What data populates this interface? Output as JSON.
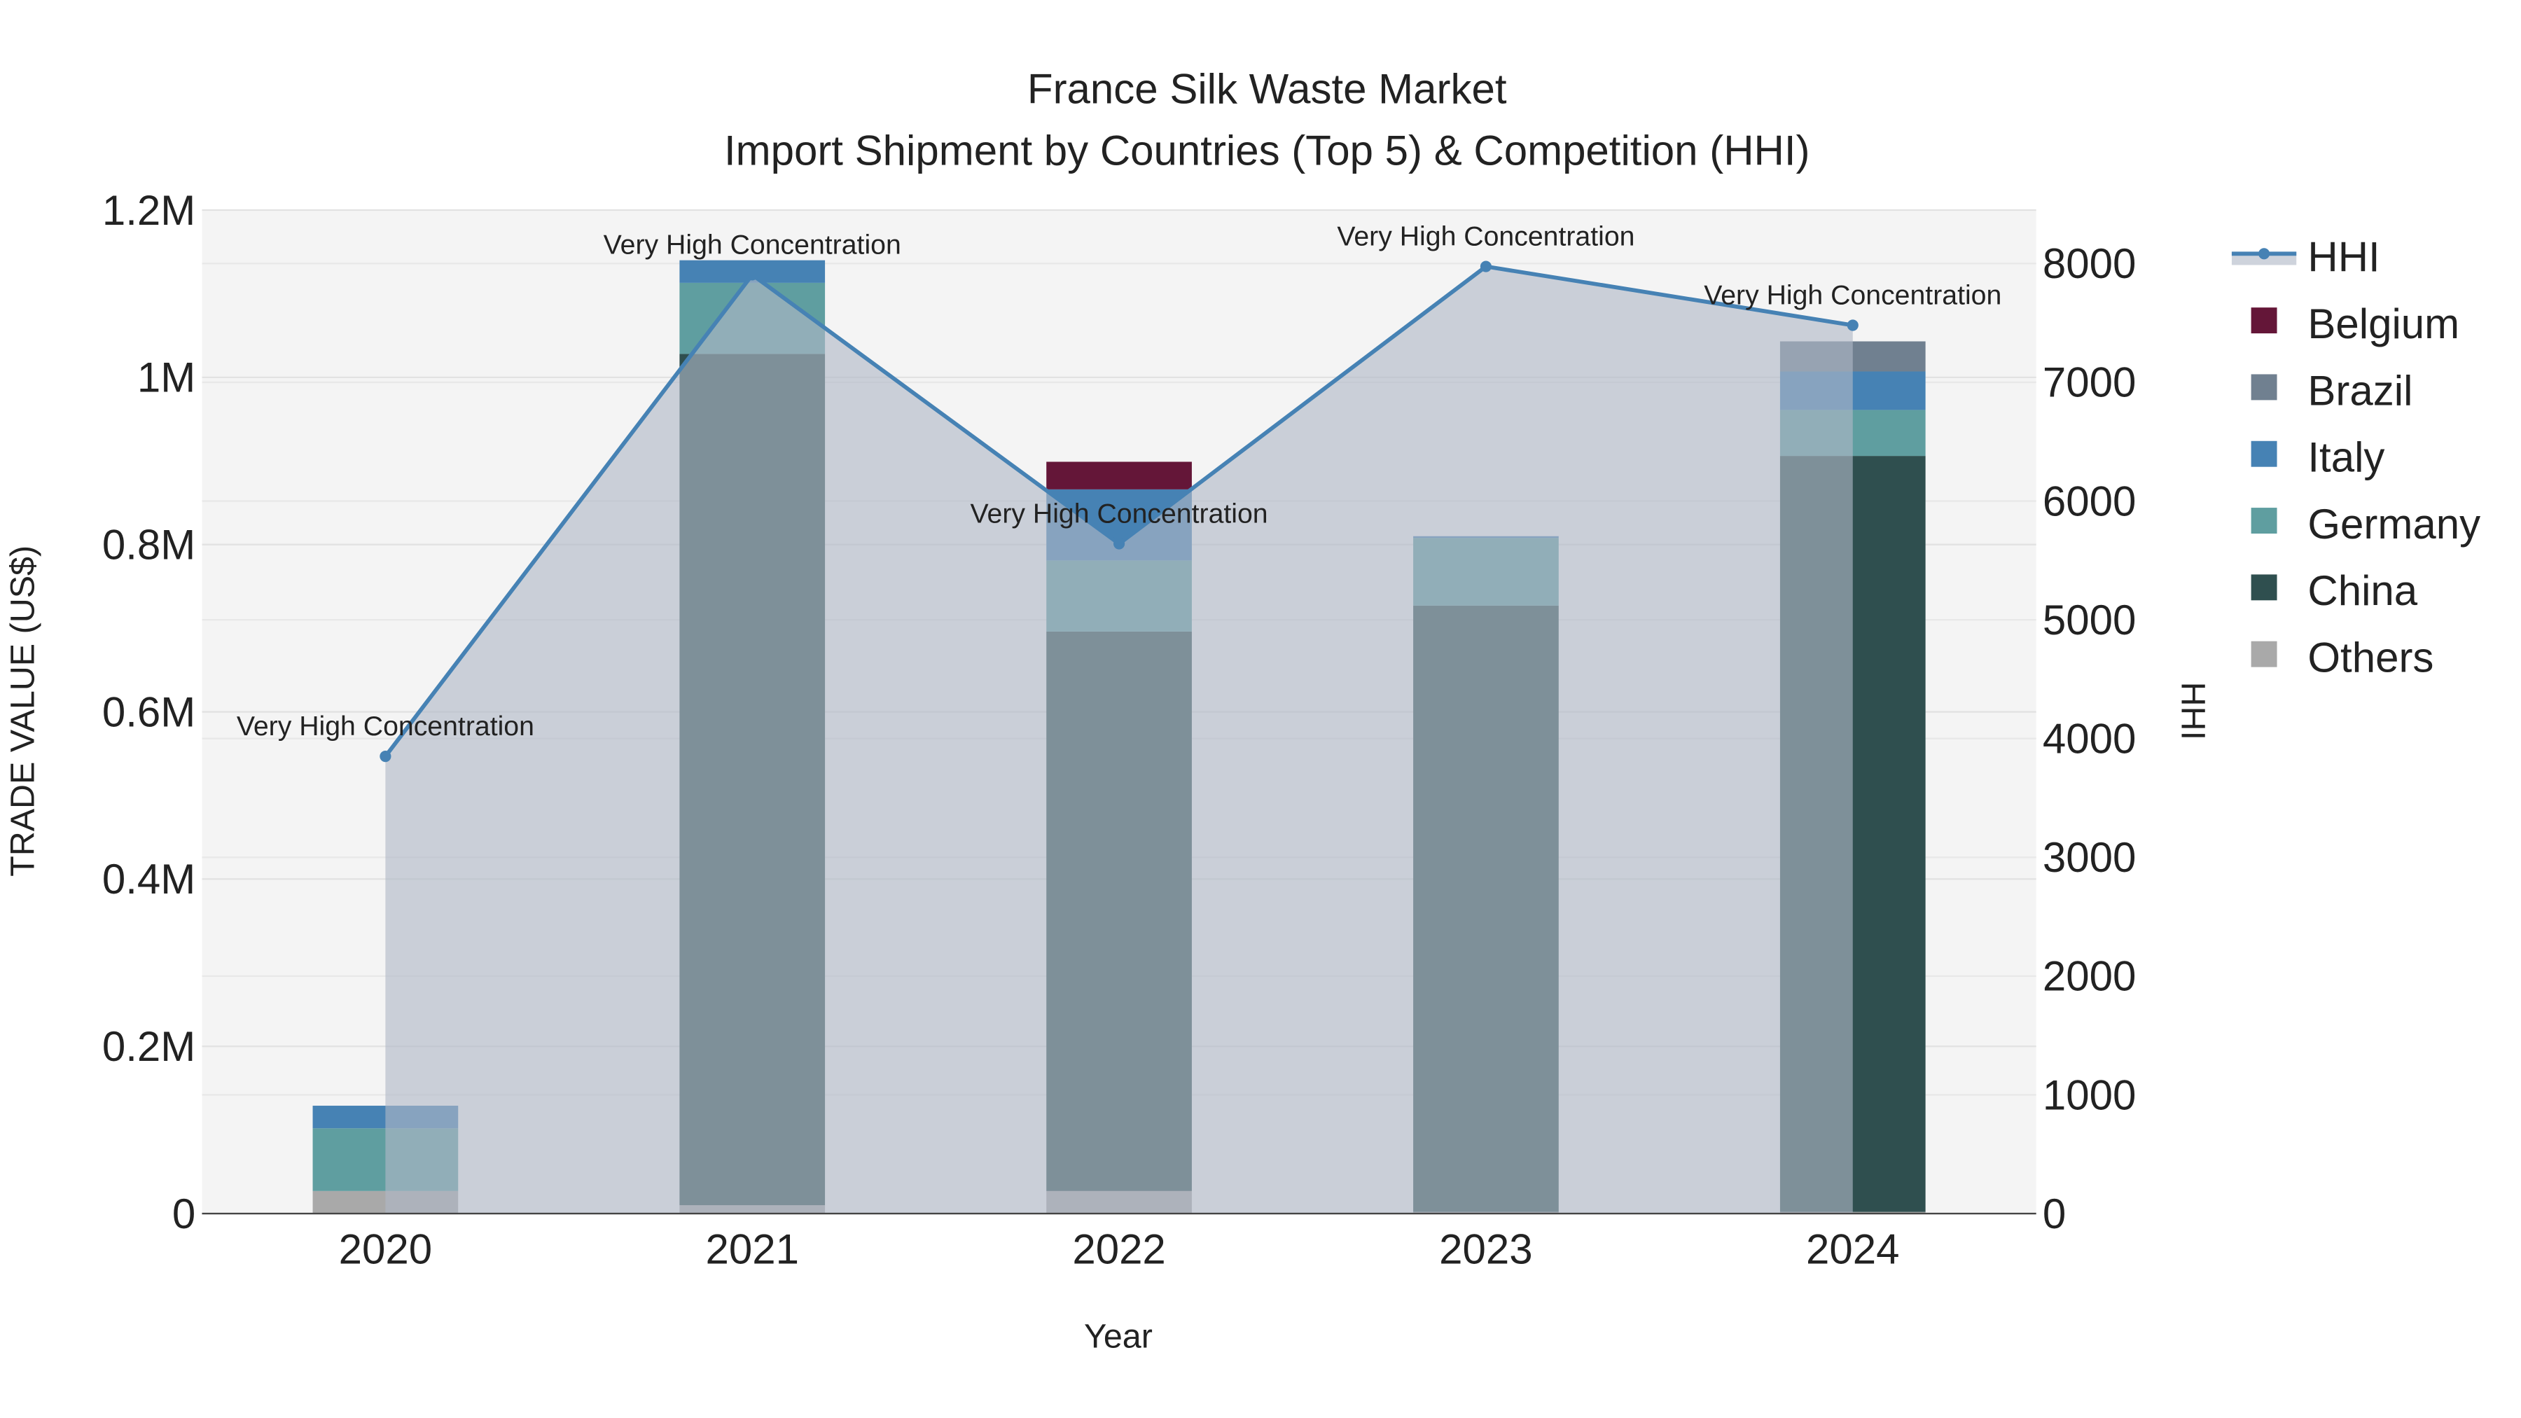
{
  "chart_data": {
    "type": "bar",
    "title": "France Silk Waste Market",
    "subtitle": "Import Shipment by Countries (Top 5) & Competition (HHI)",
    "xlabel": "Year",
    "ylabel": "TRADE VALUE (US$)",
    "y2label": "HHI",
    "categories": [
      "2020",
      "2021",
      "2022",
      "2023",
      "2024"
    ],
    "ylim": [
      0,
      1200000
    ],
    "y2lim": [
      0,
      8450
    ],
    "yticks": [
      0,
      200000,
      400000,
      600000,
      800000,
      1000000,
      1200000
    ],
    "ytick_labels": [
      "0",
      "0.2M",
      "0.4M",
      "0.6M",
      "0.8M",
      "1M",
      "1.2M"
    ],
    "y2ticks": [
      0,
      1000,
      2000,
      3000,
      4000,
      5000,
      6000,
      7000,
      8000
    ],
    "y2tick_labels": [
      "0",
      "1000",
      "2000",
      "3000",
      "4000",
      "5000",
      "6000",
      "7000",
      "8000"
    ],
    "grid": true,
    "legend_position": "right",
    "series": [
      {
        "name": "Others",
        "color": "#a9a9a9",
        "values": [
          27000,
          10000,
          27000,
          2000,
          2000
        ]
      },
      {
        "name": "China",
        "color": "#2f4f4f",
        "values": [
          0,
          1018000,
          669000,
          725000,
          904000
        ]
      },
      {
        "name": "Germany",
        "color": "#5f9ea0",
        "values": [
          75000,
          85000,
          85000,
          81000,
          55000
        ]
      },
      {
        "name": "Italy",
        "color": "#4682b4",
        "values": [
          27000,
          27000,
          85000,
          2000,
          46000
        ]
      },
      {
        "name": "Brazil",
        "color": "#708090",
        "values": [
          0,
          0,
          0,
          0,
          36000
        ]
      },
      {
        "name": "Belgium",
        "color": "#641638",
        "values": [
          0,
          0,
          33000,
          0,
          0
        ]
      }
    ],
    "legend_order": [
      "HHI",
      "Belgium",
      "Brazil",
      "Italy",
      "Germany",
      "China",
      "Others"
    ],
    "hhi": {
      "name": "HHI",
      "color": "#4682b4",
      "values": [
        3850,
        7905,
        5640,
        7975,
        7480
      ],
      "annotations": [
        "Very High Concentration",
        "Very High Concentration",
        "Very High Concentration",
        "Very High Concentration",
        "Very High Concentration"
      ]
    }
  }
}
